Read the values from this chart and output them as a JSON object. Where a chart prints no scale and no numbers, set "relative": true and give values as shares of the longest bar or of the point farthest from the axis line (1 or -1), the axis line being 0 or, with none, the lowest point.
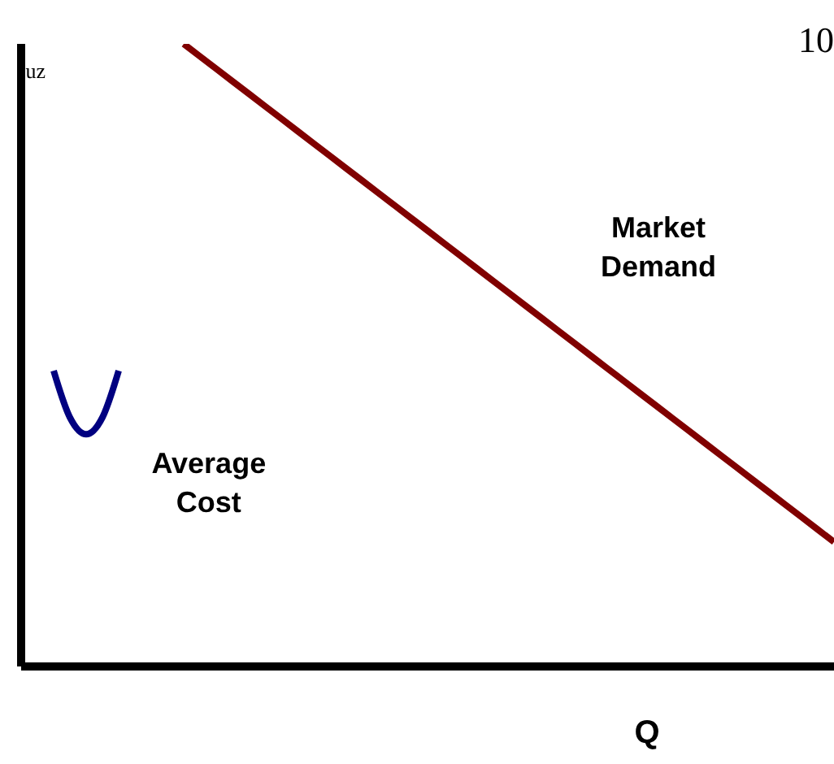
{
  "chart_data": {
    "type": "line",
    "relative": true,
    "xlabel": "Q",
    "ylabel": "uz",
    "annotations": [
      "10"
    ],
    "marker": "none",
    "line_style": "solid",
    "categories": [
      null,
      null,
      null,
      null,
      null,
      null,
      null,
      null,
      null,
      null,
      null,
      null,
      null,
      null,
      null,
      null,
      null,
      null,
      null,
      null,
      null,
      null,
      null,
      null,
      null,
      null,
      null,
      null,
      null,
      null,
      null,
      null,
      null,
      null,
      null,
      null,
      null,
      null,
      null,
      null,
      null,
      null,
      null,
      null,
      null,
      null,
      null,
      null,
      null,
      null,
      null
    ],
    "series": [
      {
        "name": "Market Demand",
        "color": "#800000",
        "values": [
          null,
          null,
          null,
          null,
          null,
          null,
          null,
          null,
          null,
          null,
          1.0,
          0.98,
          0.96,
          0.94,
          0.92,
          0.9,
          0.88,
          0.86,
          0.84,
          0.82,
          0.8,
          0.78,
          0.76,
          0.74,
          0.72,
          0.7,
          0.68,
          0.66,
          0.64,
          0.62,
          0.6,
          0.58,
          0.56,
          0.54,
          0.52,
          0.5,
          0.48,
          0.46,
          0.44,
          0.42,
          0.4,
          0.38,
          0.36,
          0.34,
          0.32,
          0.3,
          0.28,
          0.26,
          0.24,
          0.22,
          0.2
        ]
      },
      {
        "name": "Average Cost",
        "color": "#000080",
        "values": [
          null,
          null,
          0.475,
          0.4,
          0.373,
          0.4,
          0.475,
          null,
          null,
          null,
          null,
          null,
          null,
          null,
          null,
          null,
          null,
          null,
          null,
          null,
          null,
          null,
          null,
          null,
          null,
          null,
          null,
          null,
          null,
          null,
          null,
          null,
          null,
          null,
          null,
          null,
          null,
          null,
          null,
          null,
          null,
          null,
          null,
          null,
          null,
          null,
          null,
          null,
          null,
          null,
          null
        ]
      }
    ]
  }
}
